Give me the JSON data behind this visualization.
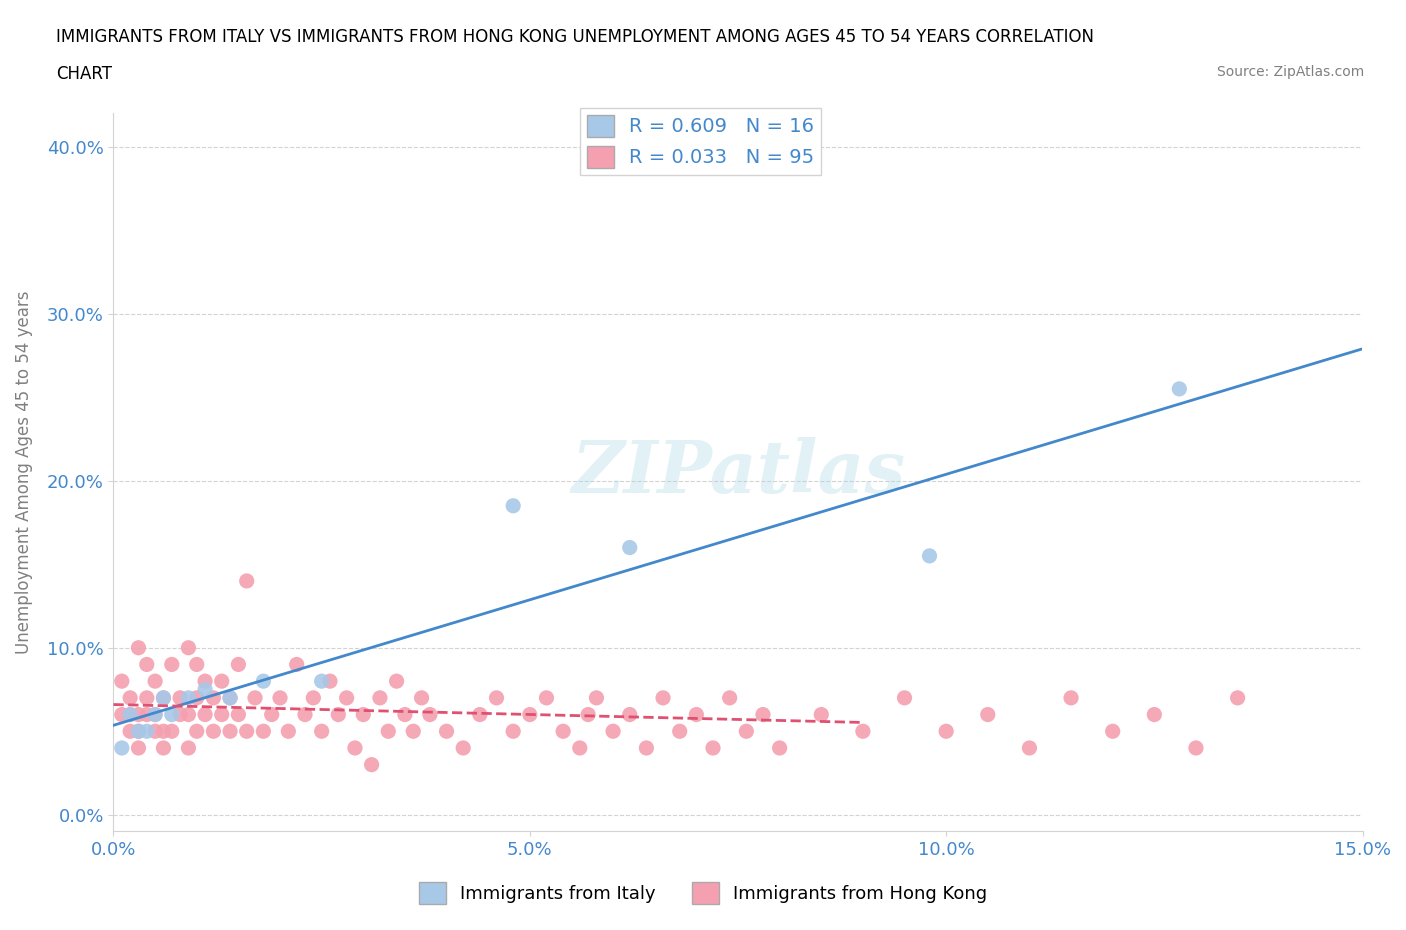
{
  "title": "IMMIGRANTS FROM ITALY VS IMMIGRANTS FROM HONG KONG UNEMPLOYMENT AMONG AGES 45 TO 54 YEARS CORRELATION\nCHART",
  "source": "Source: ZipAtlas.com",
  "ylabel": "Unemployment Among Ages 45 to 54 years",
  "xlim": [
    0.0,
    0.15
  ],
  "ylim": [
    -0.01,
    0.42
  ],
  "xticks": [
    0.0,
    0.05,
    0.1,
    0.15
  ],
  "yticks": [
    0.0,
    0.1,
    0.2,
    0.3,
    0.4
  ],
  "italy_color": "#a8c8e8",
  "hk_color": "#f4a0b0",
  "italy_trend_color": "#4488cc",
  "hk_trend_color": "#e05070",
  "italy_R": 0.609,
  "italy_N": 16,
  "hk_R": 0.033,
  "hk_N": 95,
  "watermark": "ZIPatlas",
  "italy_x": [
    0.001,
    0.002,
    0.003,
    0.004,
    0.005,
    0.006,
    0.007,
    0.009,
    0.011,
    0.014,
    0.018,
    0.025,
    0.048,
    0.062,
    0.098,
    0.128
  ],
  "italy_y": [
    0.04,
    0.06,
    0.05,
    0.05,
    0.06,
    0.07,
    0.06,
    0.07,
    0.075,
    0.07,
    0.08,
    0.08,
    0.185,
    0.16,
    0.155,
    0.255
  ],
  "hk_x": [
    0.001,
    0.001,
    0.002,
    0.002,
    0.002,
    0.003,
    0.003,
    0.003,
    0.003,
    0.004,
    0.004,
    0.004,
    0.005,
    0.005,
    0.005,
    0.006,
    0.006,
    0.006,
    0.007,
    0.007,
    0.008,
    0.008,
    0.009,
    0.009,
    0.009,
    0.01,
    0.01,
    0.01,
    0.011,
    0.011,
    0.012,
    0.012,
    0.013,
    0.013,
    0.014,
    0.014,
    0.015,
    0.015,
    0.016,
    0.016,
    0.017,
    0.018,
    0.019,
    0.02,
    0.021,
    0.022,
    0.023,
    0.024,
    0.025,
    0.026,
    0.027,
    0.028,
    0.029,
    0.03,
    0.031,
    0.032,
    0.033,
    0.034,
    0.035,
    0.036,
    0.037,
    0.038,
    0.04,
    0.042,
    0.044,
    0.046,
    0.048,
    0.05,
    0.052,
    0.054,
    0.056,
    0.057,
    0.058,
    0.06,
    0.062,
    0.064,
    0.066,
    0.068,
    0.07,
    0.072,
    0.074,
    0.076,
    0.078,
    0.08,
    0.085,
    0.09,
    0.095,
    0.1,
    0.105,
    0.11,
    0.115,
    0.12,
    0.125,
    0.13,
    0.135
  ],
  "hk_y": [
    0.06,
    0.08,
    0.05,
    0.06,
    0.07,
    0.04,
    0.05,
    0.06,
    0.1,
    0.06,
    0.07,
    0.09,
    0.05,
    0.06,
    0.08,
    0.04,
    0.05,
    0.07,
    0.05,
    0.09,
    0.06,
    0.07,
    0.04,
    0.06,
    0.1,
    0.05,
    0.07,
    0.09,
    0.06,
    0.08,
    0.05,
    0.07,
    0.06,
    0.08,
    0.05,
    0.07,
    0.06,
    0.09,
    0.14,
    0.05,
    0.07,
    0.05,
    0.06,
    0.07,
    0.05,
    0.09,
    0.06,
    0.07,
    0.05,
    0.08,
    0.06,
    0.07,
    0.04,
    0.06,
    0.03,
    0.07,
    0.05,
    0.08,
    0.06,
    0.05,
    0.07,
    0.06,
    0.05,
    0.04,
    0.06,
    0.07,
    0.05,
    0.06,
    0.07,
    0.05,
    0.04,
    0.06,
    0.07,
    0.05,
    0.06,
    0.04,
    0.07,
    0.05,
    0.06,
    0.04,
    0.07,
    0.05,
    0.06,
    0.04,
    0.06,
    0.05,
    0.07,
    0.05,
    0.06,
    0.04,
    0.07,
    0.05,
    0.06,
    0.04,
    0.07
  ]
}
